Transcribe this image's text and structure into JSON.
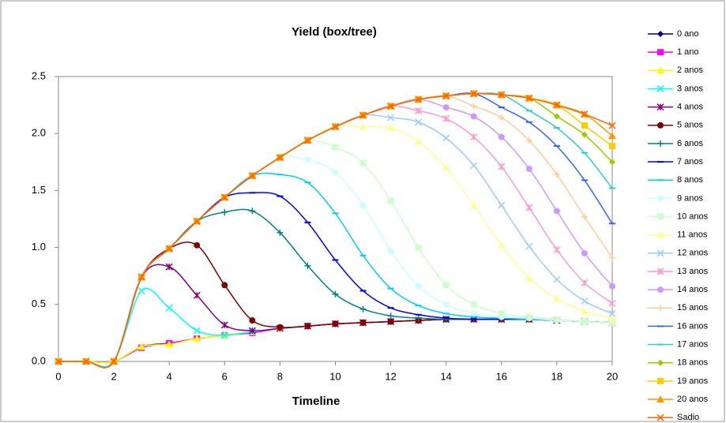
{
  "chart_data": {
    "type": "line",
    "title": "Yield (box/tree)",
    "x_label": "Timeline",
    "x": [
      0,
      1,
      2,
      3,
      4,
      5,
      6,
      7,
      8,
      9,
      10,
      11,
      12,
      13,
      14,
      15,
      16,
      17,
      18,
      19,
      20
    ],
    "xlim": [
      0,
      20
    ],
    "xticks": [
      0,
      2,
      4,
      6,
      8,
      10,
      12,
      14,
      16,
      18,
      20
    ],
    "ylim": [
      0,
      2.5
    ],
    "yticks": [
      {
        "value": 0,
        "label": "0.0"
      },
      0.5,
      {
        "value": 1,
        "label": "1.0"
      },
      1.5,
      {
        "value": 2,
        "label": "2.0"
      },
      2.5
    ],
    "grid": false,
    "legend": "right",
    "smooth": true,
    "series": [
      {
        "name": "0 ano",
        "color": "#000080",
        "marker": "diamond",
        "values": [
          0,
          0,
          0,
          0.13,
          0.16,
          0.2,
          0.23,
          0.26,
          0.29,
          0.31,
          0.33,
          0.34,
          0.35,
          0.36,
          0.37,
          0.37,
          0.37,
          0.37,
          0.36,
          0.35,
          0.34
        ]
      },
      {
        "name": "1 ano",
        "color": "#FF00FF",
        "marker": "square",
        "values": [
          0,
          0,
          0,
          0.12,
          0.16,
          0.2,
          0.23,
          0.25,
          0.29,
          0.31,
          0.33,
          0.34,
          0.35,
          0.36,
          0.37,
          0.37,
          0.37,
          0.37,
          0.36,
          0.35,
          0.34
        ]
      },
      {
        "name": "2 anos",
        "color": "#FFFF00",
        "marker": "triangle",
        "values": [
          0,
          0,
          0,
          0.13,
          0.15,
          0.2,
          0.23,
          0.26,
          0.29,
          0.31,
          0.33,
          0.34,
          0.35,
          0.36,
          0.37,
          0.37,
          0.37,
          0.37,
          0.36,
          0.35,
          0.34
        ]
      },
      {
        "name": "3 anos",
        "color": "#00FFFF",
        "marker": "x",
        "values": [
          0,
          0,
          0,
          0.62,
          0.47,
          0.27,
          0.23,
          0.26,
          0.29,
          0.31,
          0.33,
          0.34,
          0.35,
          0.36,
          0.37,
          0.37,
          0.37,
          0.37,
          0.36,
          0.35,
          0.34
        ]
      },
      {
        "name": "4 anos",
        "color": "#800080",
        "marker": "star",
        "values": [
          0,
          0,
          0,
          0.74,
          0.83,
          0.58,
          0.32,
          0.27,
          0.29,
          0.31,
          0.33,
          0.34,
          0.35,
          0.36,
          0.37,
          0.37,
          0.37,
          0.37,
          0.36,
          0.35,
          0.34
        ]
      },
      {
        "name": "5 anos",
        "color": "#800000",
        "marker": "circle",
        "values": [
          0,
          0,
          0,
          0.74,
          0.99,
          1.02,
          0.67,
          0.36,
          0.3,
          0.31,
          0.33,
          0.34,
          0.35,
          0.36,
          0.37,
          0.37,
          0.37,
          0.37,
          0.36,
          0.35,
          0.34
        ]
      },
      {
        "name": "6 anos",
        "color": "#008080",
        "marker": "plus",
        "values": [
          0,
          0,
          0,
          0.74,
          0.99,
          1.23,
          1.31,
          1.32,
          1.13,
          0.84,
          0.59,
          0.46,
          0.4,
          0.38,
          0.37,
          0.37,
          0.37,
          0.37,
          0.36,
          0.35,
          0.34
        ]
      },
      {
        "name": "7 anos",
        "color": "#0000FF",
        "marker": "dash",
        "values": [
          0,
          0,
          0,
          0.74,
          0.99,
          1.23,
          1.44,
          1.48,
          1.45,
          1.22,
          0.89,
          0.62,
          0.47,
          0.41,
          0.38,
          0.37,
          0.37,
          0.37,
          0.36,
          0.35,
          0.34
        ]
      },
      {
        "name": "8 anos",
        "color": "#00CCFF",
        "marker": "dash",
        "values": [
          0,
          0,
          0,
          0.74,
          0.99,
          1.23,
          1.44,
          1.63,
          1.64,
          1.57,
          1.3,
          0.93,
          0.64,
          0.49,
          0.42,
          0.39,
          0.38,
          0.37,
          0.36,
          0.35,
          0.34
        ]
      },
      {
        "name": "9 anos",
        "color": "#CCFFFF",
        "marker": "circle",
        "values": [
          0,
          0,
          0,
          0.74,
          0.99,
          1.23,
          1.44,
          1.63,
          1.79,
          1.77,
          1.66,
          1.37,
          0.97,
          0.66,
          0.5,
          0.42,
          0.39,
          0.38,
          0.36,
          0.35,
          0.34
        ]
      },
      {
        "name": "10 anos",
        "color": "#CCFFCC",
        "marker": "square",
        "values": [
          0,
          0,
          0,
          0.74,
          0.99,
          1.23,
          1.44,
          1.63,
          1.79,
          1.94,
          1.88,
          1.74,
          1.41,
          1.0,
          0.67,
          0.5,
          0.42,
          0.39,
          0.37,
          0.35,
          0.34
        ]
      },
      {
        "name": "11 anos",
        "color": "#FFFF99",
        "marker": "triangle",
        "values": [
          0,
          0,
          0,
          0.74,
          0.99,
          1.23,
          1.44,
          1.63,
          1.79,
          1.94,
          2.06,
          2.06,
          2.05,
          1.93,
          1.7,
          1.37,
          1.02,
          0.73,
          0.55,
          0.44,
          0.38
        ]
      },
      {
        "name": "12 anos",
        "color": "#99CCFF",
        "marker": "x",
        "values": [
          0,
          0,
          0,
          0.74,
          0.99,
          1.23,
          1.44,
          1.63,
          1.79,
          1.94,
          2.06,
          2.16,
          2.14,
          2.1,
          1.96,
          1.72,
          1.37,
          1.01,
          0.72,
          0.53,
          0.42
        ]
      },
      {
        "name": "13 anos",
        "color": "#FF99CC",
        "marker": "star",
        "values": [
          0,
          0,
          0,
          0.74,
          0.99,
          1.23,
          1.44,
          1.63,
          1.79,
          1.94,
          2.06,
          2.16,
          2.24,
          2.2,
          2.13,
          1.97,
          1.71,
          1.35,
          0.98,
          0.69,
          0.51
        ]
      },
      {
        "name": "14 anos",
        "color": "#CC99FF",
        "marker": "circle",
        "values": [
          0,
          0,
          0,
          0.74,
          0.99,
          1.23,
          1.44,
          1.63,
          1.79,
          1.94,
          2.06,
          2.16,
          2.24,
          2.3,
          2.23,
          2.15,
          1.97,
          1.69,
          1.32,
          0.95,
          0.66
        ]
      },
      {
        "name": "15 anos",
        "color": "#FFCC99",
        "marker": "plus",
        "values": [
          0,
          0,
          0,
          0.74,
          0.99,
          1.23,
          1.44,
          1.63,
          1.79,
          1.94,
          2.06,
          2.16,
          2.24,
          2.3,
          2.33,
          2.24,
          2.14,
          1.94,
          1.64,
          1.27,
          0.91
        ]
      },
      {
        "name": "16 anos",
        "color": "#3366FF",
        "marker": "dash",
        "values": [
          0,
          0,
          0,
          0.74,
          0.99,
          1.23,
          1.44,
          1.63,
          1.79,
          1.94,
          2.06,
          2.16,
          2.24,
          2.3,
          2.33,
          2.35,
          2.23,
          2.1,
          1.89,
          1.59,
          1.21
        ]
      },
      {
        "name": "17 anos",
        "color": "#33CCCC",
        "marker": "dash",
        "values": [
          0,
          0,
          0,
          0.74,
          0.99,
          1.23,
          1.44,
          1.63,
          1.79,
          1.94,
          2.06,
          2.16,
          2.24,
          2.3,
          2.33,
          2.35,
          2.34,
          2.2,
          2.05,
          1.83,
          1.52
        ]
      },
      {
        "name": "18 anos",
        "color": "#99CC00",
        "marker": "diamond",
        "values": [
          0,
          0,
          0,
          0.74,
          0.99,
          1.23,
          1.44,
          1.63,
          1.79,
          1.94,
          2.06,
          2.16,
          2.24,
          2.3,
          2.33,
          2.35,
          2.34,
          2.31,
          2.15,
          1.99,
          1.75
        ]
      },
      {
        "name": "19 anos",
        "color": "#FFCC00",
        "marker": "square",
        "values": [
          0,
          0,
          0,
          0.74,
          0.99,
          1.23,
          1.44,
          1.63,
          1.79,
          1.94,
          2.06,
          2.16,
          2.24,
          2.3,
          2.33,
          2.35,
          2.34,
          2.31,
          2.25,
          2.07,
          1.89
        ]
      },
      {
        "name": "20 anos",
        "color": "#FF9900",
        "marker": "triangle",
        "values": [
          0,
          0,
          0,
          0.74,
          0.99,
          1.23,
          1.44,
          1.63,
          1.79,
          1.94,
          2.06,
          2.16,
          2.24,
          2.3,
          2.33,
          2.35,
          2.34,
          2.31,
          2.25,
          2.17,
          1.98
        ]
      },
      {
        "name": "Sadio",
        "color": "#FF6600",
        "marker": "x",
        "values": [
          0,
          0,
          0,
          0.74,
          0.99,
          1.23,
          1.44,
          1.63,
          1.79,
          1.94,
          2.06,
          2.16,
          2.24,
          2.3,
          2.33,
          2.35,
          2.34,
          2.31,
          2.25,
          2.17,
          2.07
        ]
      }
    ]
  }
}
